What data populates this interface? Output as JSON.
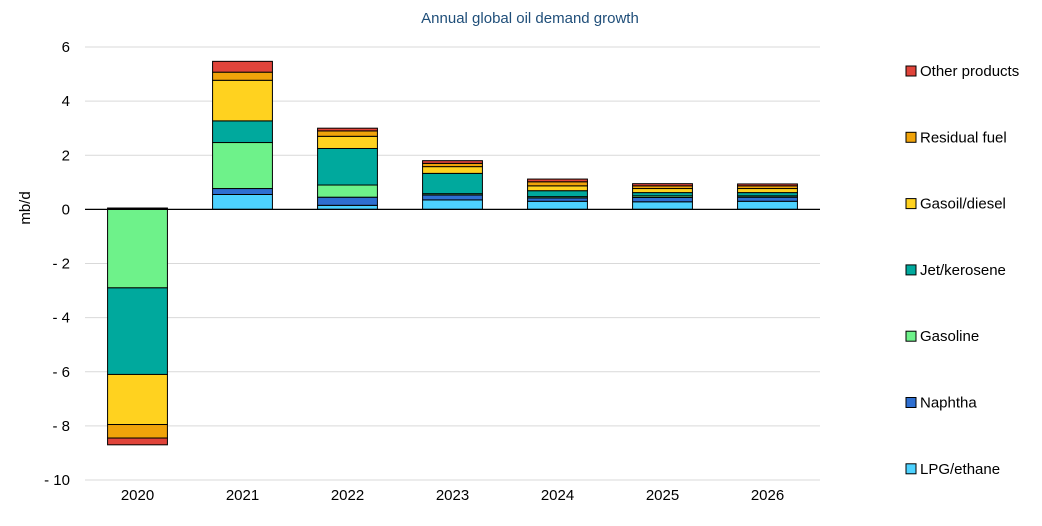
{
  "chart_data": {
    "type": "bar",
    "stacked": true,
    "title": "Annual global oil demand growth",
    "xlabel": "",
    "ylabel": "mb/d",
    "ylim": [
      -10,
      6
    ],
    "yticks": [
      6,
      4,
      2,
      0,
      -2,
      -4,
      -6,
      -8,
      -10
    ],
    "ytick_labels": [
      "6",
      "4",
      "2",
      "0",
      "- 2",
      "- 4",
      "- 6",
      "- 8",
      "- 10"
    ],
    "grid": true,
    "legend_position": "right",
    "categories": [
      "2020",
      "2021",
      "2022",
      "2023",
      "2024",
      "2025",
      "2026"
    ],
    "series": [
      {
        "name": "LPG/ethane",
        "color": "#4dd2ff",
        "values": [
          0.02,
          0.55,
          0.15,
          0.35,
          0.3,
          0.28,
          0.3
        ]
      },
      {
        "name": "Naphtha",
        "color": "#2e6fd1",
        "values": [
          0.03,
          0.22,
          0.3,
          0.18,
          0.12,
          0.16,
          0.15
        ]
      },
      {
        "name": "Gasoline",
        "color": "#6ef28a",
        "values": [
          -2.9,
          1.7,
          0.45,
          0.05,
          0.05,
          0.06,
          0.05
        ]
      },
      {
        "name": "Jet/kerosene",
        "color": "#00a99d",
        "values": [
          -3.2,
          0.8,
          1.35,
          0.75,
          0.22,
          0.12,
          0.12
        ]
      },
      {
        "name": "Gasoil/diesel",
        "color": "#ffd21f",
        "values": [
          -1.85,
          1.5,
          0.45,
          0.25,
          0.18,
          0.15,
          0.15
        ]
      },
      {
        "name": "Residual fuel",
        "color": "#f0a30a",
        "values": [
          -0.5,
          0.3,
          0.2,
          0.12,
          0.15,
          0.1,
          0.1
        ]
      },
      {
        "name": "Other products",
        "color": "#e0443a",
        "values": [
          -0.25,
          0.4,
          0.1,
          0.1,
          0.1,
          0.08,
          0.07
        ]
      }
    ]
  }
}
